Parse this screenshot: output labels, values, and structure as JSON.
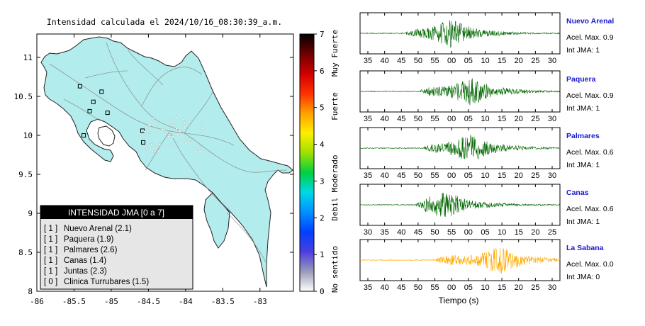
{
  "map": {
    "title": "Intensidad calculada el 2024/10/16_08:30:39_a.m.",
    "x_ticks": [
      "-86",
      "-85.5",
      "-85",
      "-84.5",
      "-84",
      "-83.5",
      "-83"
    ],
    "y_ticks": [
      "11",
      "10.5",
      "10",
      "9.5",
      "9",
      "8.5",
      "8"
    ],
    "land_color": "#b3ecec",
    "station_markers": [
      {
        "lon": -85.42,
        "lat": 10.63
      },
      {
        "lon": -85.13,
        "lat": 10.56
      },
      {
        "lon": -85.24,
        "lat": 10.43
      },
      {
        "lon": -85.05,
        "lat": 10.29
      },
      {
        "lon": -85.29,
        "lat": 10.31
      },
      {
        "lon": -85.37,
        "lat": 10.0
      },
      {
        "lon": -84.58,
        "lat": 10.06
      },
      {
        "lon": -84.57,
        "lat": 9.91
      }
    ],
    "legend": {
      "header": "INTENSIDAD JMA [0 a 7]",
      "rows": [
        {
          "level": "[ 1 ]",
          "name": "Nuevo Arenal (2.1)"
        },
        {
          "level": "[ 1 ]",
          "name": "Paquera (1.9)"
        },
        {
          "level": "[ 1 ]",
          "name": "Palmares (2.6)"
        },
        {
          "level": "[ 1 ]",
          "name": "Canas (1.4)"
        },
        {
          "level": "[ 1 ]",
          "name": "Juntas (2.3)"
        },
        {
          "level": "[ 0 ]",
          "name": "Clinica Turrubares (1.5)"
        }
      ]
    }
  },
  "colorbar": {
    "ticks": [
      "7",
      "6",
      "5",
      "4",
      "3",
      "2",
      "1",
      "0"
    ],
    "labels": [
      "Muy Fuerte",
      "Fuerte",
      "Moderado",
      "Debil",
      "No sentido"
    ],
    "colors": [
      "#ffffff",
      "#9a9ab8",
      "#4b3ee0",
      "#0040ff",
      "#0090ff",
      "#00d8e8",
      "#00d040",
      "#a0e000",
      "#ffee00",
      "#ffa000",
      "#ff3000",
      "#d00000",
      "#700000",
      "#000000"
    ]
  },
  "chart_data": {
    "type": "line",
    "xlabel": "Tiempo (s)",
    "series": [
      {
        "name": "Nuevo Arenal",
        "acel_label": "Acel. Max. 0.9",
        "int_label": "Int JMA: 1",
        "color": "#006600",
        "x_tick_labels": [
          "35",
          "40",
          "45",
          "50",
          "55",
          "00",
          "05",
          "10",
          "15",
          "20",
          "25",
          "30"
        ],
        "onset": 0.23,
        "peak": 0.45
      },
      {
        "name": "Paquera",
        "acel_label": "Acel. Max. 0.9",
        "int_label": "Int JMA: 1",
        "color": "#006600",
        "x_tick_labels": [
          "35",
          "40",
          "45",
          "50",
          "55",
          "00",
          "05",
          "10",
          "15",
          "20",
          "25",
          "30"
        ],
        "onset": 0.3,
        "peak": 0.55
      },
      {
        "name": "Palmares",
        "acel_label": "Acel. Max. 0.6",
        "int_label": "Int JMA: 1",
        "color": "#006600",
        "x_tick_labels": [
          "35",
          "40",
          "45",
          "50",
          "55",
          "00",
          "05",
          "10",
          "15",
          "20",
          "25",
          "30"
        ],
        "onset": 0.32,
        "peak": 0.55
      },
      {
        "name": "Canas",
        "acel_label": "Acel. Max. 0.6",
        "int_label": "Int JMA: 1",
        "color": "#006600",
        "x_tick_labels": [
          "30",
          "35",
          "40",
          "45",
          "50",
          "55",
          "00",
          "05",
          "10",
          "15",
          "20",
          "25"
        ],
        "onset": 0.28,
        "peak": 0.42
      },
      {
        "name": "La Sabana",
        "acel_label": "Acel. Max. 0.0",
        "int_label": "Int JMA: 0",
        "color": "#ffaa00",
        "x_tick_labels": [
          "35",
          "40",
          "45",
          "50",
          "55",
          "00",
          "05",
          "10",
          "15",
          "20",
          "25",
          "30"
        ],
        "onset": 0.38,
        "peak": 0.7
      }
    ]
  }
}
